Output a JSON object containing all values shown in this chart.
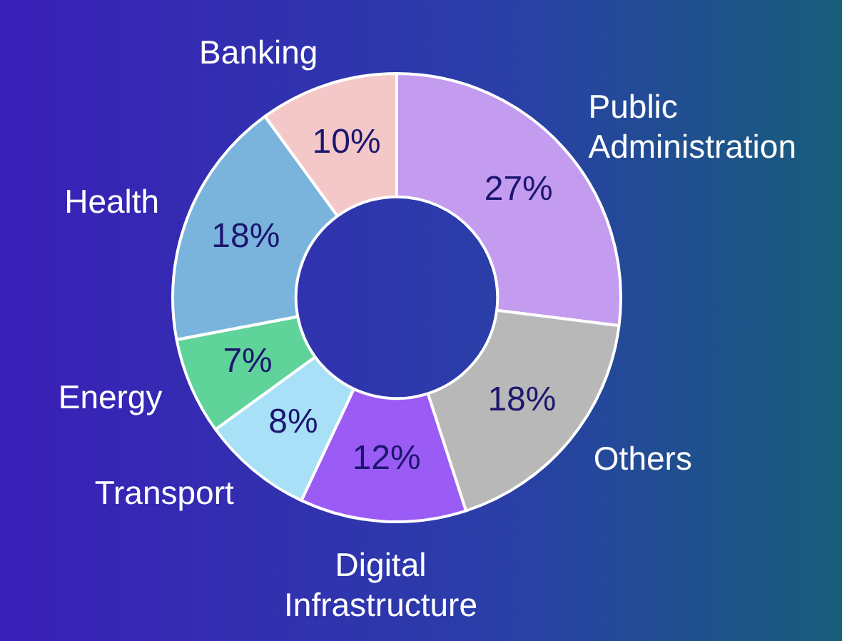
{
  "chart_data": {
    "type": "donut",
    "categories": [
      "Public Administration",
      "Others",
      "Digital Infrastructure",
      "Transport",
      "Energy",
      "Health",
      "Banking"
    ],
    "values": [
      27,
      18,
      12,
      8,
      7,
      18,
      10
    ],
    "colors": [
      "#c39cf0",
      "#b8b8b8",
      "#9b5cf5",
      "#a8e0f8",
      "#5fd39a",
      "#7ab4dc",
      "#f4c8c8"
    ],
    "value_labels": [
      "27%",
      "18%",
      "12%",
      "8%",
      "7%",
      "18%",
      "10%"
    ],
    "legend": false
  }
}
